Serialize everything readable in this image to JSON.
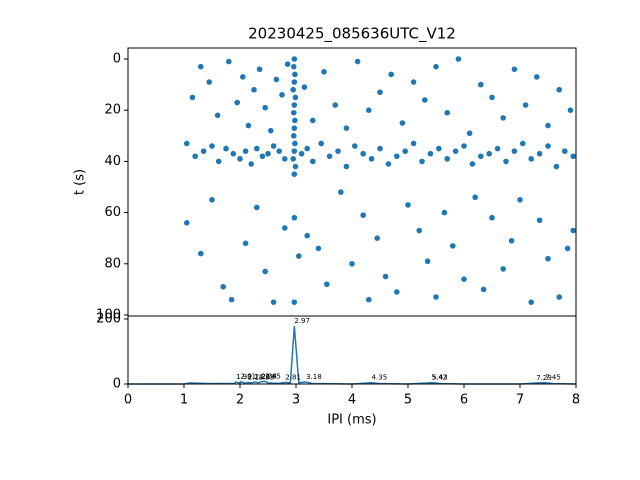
{
  "chart_data": [
    {
      "type": "scatter",
      "title": "20230425_085636UTC_V12",
      "y_label": "t (s)",
      "color": "#1f77b4",
      "xlim": [
        0,
        8
      ],
      "ylim": [
        100.4,
        -4.3
      ],
      "yticks": [
        0,
        20,
        40,
        60,
        80,
        100
      ],
      "x": [
        2.97,
        2.96,
        2.98,
        2.97,
        2.95,
        2.99,
        2.97,
        2.96,
        2.98,
        2.97,
        2.96,
        2.98,
        2.97,
        2.95,
        2.99,
        2.97,
        2.97,
        2.97,
        1.05,
        1.2,
        1.35,
        1.5,
        1.62,
        1.75,
        1.88,
        2.0,
        2.1,
        2.2,
        2.3,
        2.4,
        2.5,
        2.6,
        2.7,
        2.8,
        3.1,
        3.2,
        3.3,
        3.45,
        3.6,
        3.75,
        3.9,
        4.05,
        4.2,
        4.35,
        4.5,
        4.65,
        4.8,
        4.95,
        5.1,
        5.25,
        5.4,
        5.55,
        5.7,
        5.85,
        6.0,
        6.15,
        6.3,
        6.45,
        6.6,
        6.75,
        6.9,
        7.05,
        7.2,
        7.35,
        7.5,
        7.65,
        7.8,
        7.95,
        1.15,
        1.3,
        1.45,
        1.6,
        1.8,
        1.95,
        2.05,
        2.15,
        2.25,
        2.35,
        2.45,
        2.55,
        2.65,
        2.75,
        2.85,
        3.15,
        3.3,
        3.5,
        3.7,
        3.9,
        4.1,
        4.3,
        4.5,
        4.7,
        4.9,
        5.1,
        5.3,
        5.5,
        5.7,
        5.9,
        6.1,
        6.3,
        6.5,
        6.7,
        6.9,
        7.1,
        7.3,
        7.5,
        7.7,
        7.9,
        1.05,
        1.3,
        1.5,
        1.7,
        1.85,
        2.1,
        2.3,
        2.45,
        2.6,
        2.8,
        3.05,
        3.2,
        3.4,
        3.55,
        3.8,
        4.0,
        4.2,
        4.3,
        4.45,
        4.6,
        4.8,
        5.0,
        5.2,
        5.35,
        5.5,
        5.65,
        5.8,
        6.0,
        6.2,
        6.35,
        6.5,
        6.7,
        6.85,
        7.0,
        7.2,
        7.35,
        7.5,
        7.7,
        7.85,
        7.95
      ],
      "values": [
        0,
        3,
        6,
        9,
        12,
        15,
        18,
        21,
        24,
        27,
        30,
        33,
        36,
        39,
        42,
        45,
        62,
        95,
        33,
        38,
        36,
        34,
        40,
        35,
        37,
        39,
        36,
        41,
        35,
        38,
        37,
        34,
        36,
        39,
        37,
        35,
        40,
        33,
        38,
        36,
        42,
        34,
        37,
        39,
        35,
        41,
        38,
        36,
        33,
        40,
        37,
        35,
        39,
        36,
        34,
        41,
        38,
        37,
        35,
        40,
        36,
        33,
        39,
        37,
        34,
        42,
        36,
        38,
        15,
        3,
        9,
        22,
        1,
        17,
        7,
        26,
        12,
        4,
        19,
        28,
        8,
        14,
        2,
        11,
        24,
        5,
        18,
        27,
        1,
        20,
        13,
        6,
        25,
        9,
        16,
        3,
        21,
        0,
        29,
        10,
        15,
        23,
        4,
        18,
        7,
        26,
        12,
        20,
        64,
        76,
        55,
        89,
        94,
        72,
        58,
        83,
        95,
        66,
        77,
        69,
        74,
        88,
        52,
        80,
        61,
        94,
        70,
        85,
        91,
        57,
        67,
        79,
        93,
        60,
        73,
        86,
        54,
        90,
        62,
        82,
        71,
        55,
        95,
        63,
        78,
        93,
        74,
        67
      ]
    },
    {
      "type": "line",
      "x_label": "IPI (ms)",
      "color": "#1f77b4",
      "xlim": [
        0,
        8
      ],
      "xticks": [
        0,
        1,
        2,
        3,
        4,
        5,
        6,
        7,
        8
      ],
      "ylim": [
        0,
        209
      ],
      "yticks": [
        0,
        200
      ],
      "x": [
        0,
        0.5,
        1.0,
        1.1,
        1.5,
        1.9,
        1.93,
        2.0,
        2.01,
        2.1,
        2.14,
        2.2,
        2.26,
        2.33,
        2.38,
        2.45,
        2.5,
        2.7,
        2.81,
        2.9,
        2.97,
        3.05,
        3.18,
        3.3,
        3.5,
        4.0,
        4.35,
        4.5,
        5.0,
        5.42,
        5.43,
        5.6,
        6.0,
        6.5,
        7.0,
        7.29,
        7.45,
        7.6,
        8.0
      ],
      "values": [
        0,
        0,
        0,
        3,
        1,
        2,
        6,
        3,
        7,
        2,
        5,
        3,
        6,
        4,
        7,
        8,
        3,
        2,
        5,
        3,
        178,
        4,
        6,
        1,
        1,
        0,
        4,
        1,
        0,
        4,
        4,
        1,
        0,
        0,
        0,
        3,
        4,
        1,
        0
      ],
      "peaks": {
        "x": [
          1.93,
          2.01,
          2.14,
          2.26,
          2.33,
          2.38,
          2.45,
          2.81,
          2.97,
          3.18,
          4.35,
          5.42,
          5.43,
          7.29,
          7.45
        ],
        "values": [
          6,
          7,
          5,
          6,
          4,
          7,
          8,
          5,
          178,
          6,
          4,
          4,
          4,
          3,
          4
        ]
      }
    }
  ]
}
